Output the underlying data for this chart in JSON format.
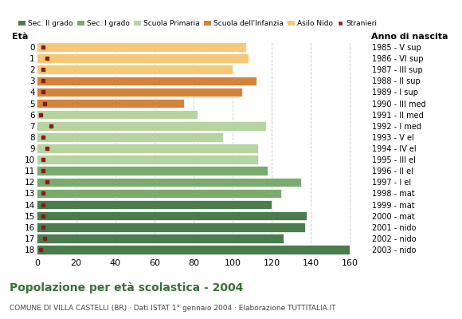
{
  "ages": [
    18,
    17,
    16,
    15,
    14,
    13,
    12,
    11,
    10,
    9,
    8,
    7,
    6,
    5,
    4,
    3,
    2,
    1,
    0
  ],
  "years": [
    "1985 - V sup",
    "1986 - VI sup",
    "1987 - III sup",
    "1988 - II sup",
    "1989 - I sup",
    "1990 - III med",
    "1991 - II med",
    "1992 - I med",
    "1993 - V el",
    "1994 - IV el",
    "1995 - III el",
    "1996 - II el",
    "1997 - I el",
    "1998 - mat",
    "1999 - mat",
    "2000 - mat",
    "2001 - nido",
    "2002 - nido",
    "2003 - nido"
  ],
  "values": [
    160,
    126,
    137,
    138,
    120,
    125,
    135,
    118,
    113,
    113,
    95,
    117,
    82,
    75,
    105,
    112,
    100,
    108,
    107
  ],
  "stranieri": [
    2,
    4,
    3,
    3,
    3,
    3,
    5,
    3,
    3,
    5,
    3,
    7,
    2,
    4,
    3,
    3,
    3,
    5,
    3
  ],
  "bar_colors": [
    "#4a7c4e",
    "#4a7c4e",
    "#4a7c4e",
    "#4a7c4e",
    "#4a7c4e",
    "#7aab6e",
    "#7aab6e",
    "#7aab6e",
    "#b5d4a0",
    "#b5d4a0",
    "#b5d4a0",
    "#b5d4a0",
    "#b5d4a0",
    "#d4843a",
    "#d4843a",
    "#d4843a",
    "#f5c97a",
    "#f5c97a",
    "#f5c97a"
  ],
  "stranieri_color": "#8b1a1a",
  "title": "Popolazione per età scolastica - 2004",
  "subtitle": "COMUNE DI VILLA CASTELLI (BR) · Dati ISTAT 1° gennaio 2004 · Elaborazione TUTTITALIA.IT",
  "xlabel_eta": "Età",
  "xlabel_anno": "Anno di nascita",
  "xlim": [
    0,
    170
  ],
  "xticks": [
    0,
    20,
    40,
    60,
    80,
    100,
    120,
    140,
    160
  ],
  "grid_color": "#cccccc",
  "bg_color": "#ffffff",
  "legend_labels": [
    "Sec. II grado",
    "Sec. I grado",
    "Scuola Primaria",
    "Scuola dell'Infanzia",
    "Asilo Nido",
    "Stranieri"
  ],
  "legend_colors": [
    "#4a7c4e",
    "#7aab6e",
    "#b5d4a0",
    "#d4843a",
    "#f5c97a",
    "#8b1a1a"
  ]
}
